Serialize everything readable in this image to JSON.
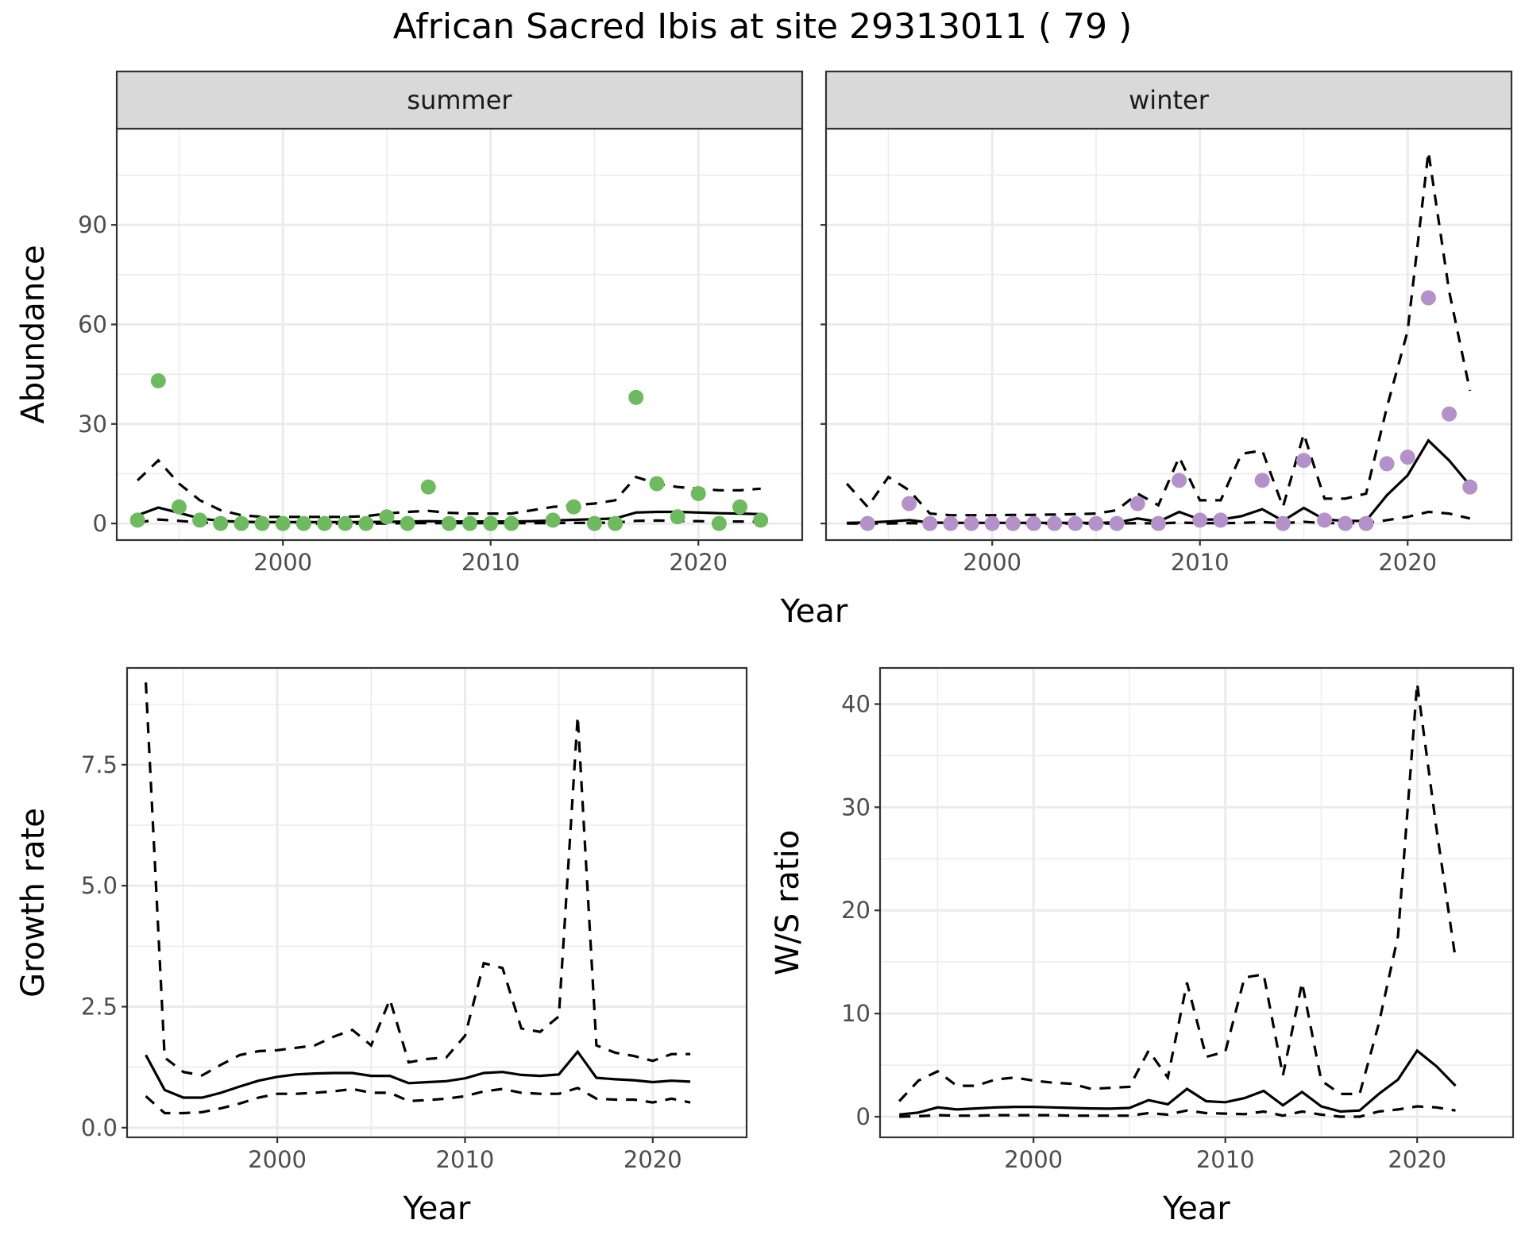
{
  "title": "African Sacred Ibis at site 29313011 ( 79 )",
  "chart_data": [
    {
      "type": "scatter+line",
      "panel": "summer",
      "strip_label": "summer",
      "xlabel": "Year",
      "ylabel": "Abundance",
      "xlim": [
        1992,
        2025
      ],
      "ylim": [
        -5,
        119
      ],
      "xticks": [
        2000,
        2010,
        2020
      ],
      "yticks": [
        0,
        30,
        60,
        90
      ],
      "point_color": "#6dbb5e",
      "grid": true,
      "observed": {
        "x": [
          1993,
          1994,
          1995,
          1996,
          1997,
          1998,
          1999,
          2000,
          2001,
          2002,
          2003,
          2004,
          2005,
          2006,
          2007,
          2008,
          2009,
          2010,
          2011,
          2013,
          2014,
          2015,
          2016,
          2017,
          2018,
          2019,
          2020,
          2021,
          2022,
          2023
        ],
        "y": [
          1,
          43,
          5,
          1,
          0,
          0,
          0,
          0,
          0,
          0,
          0,
          0,
          2,
          0,
          11,
          0,
          0,
          0,
          0,
          1,
          5,
          0,
          0,
          38,
          12,
          2,
          9,
          0,
          5,
          1
        ]
      },
      "fit": {
        "x": [
          1993,
          1994,
          1995,
          1996,
          1997,
          1998,
          1999,
          2000,
          2001,
          2002,
          2003,
          2004,
          2005,
          2006,
          2007,
          2008,
          2009,
          2010,
          2011,
          2012,
          2013,
          2014,
          2015,
          2016,
          2017,
          2018,
          2019,
          2020,
          2021,
          2022,
          2023
        ],
        "mean": [
          2.5,
          4.8,
          3.2,
          1.5,
          0.8,
          0.5,
          0.4,
          0.4,
          0.4,
          0.4,
          0.4,
          0.4,
          0.5,
          0.6,
          0.7,
          0.6,
          0.6,
          0.6,
          0.6,
          0.7,
          0.9,
          1.1,
          1.3,
          1.5,
          3.3,
          3.5,
          3.5,
          3.3,
          3.1,
          3.0,
          2.8
        ],
        "lower": [
          0.3,
          1.2,
          0.8,
          0.3,
          0.1,
          0.0,
          0.0,
          0.0,
          0.0,
          0.0,
          0.0,
          0.0,
          0.0,
          0.1,
          0.1,
          0.1,
          0.1,
          0.1,
          0.1,
          0.1,
          0.1,
          0.2,
          0.2,
          0.3,
          0.8,
          0.9,
          0.8,
          0.7,
          0.6,
          0.6,
          0.5
        ],
        "upper": [
          13,
          19,
          12,
          7,
          4,
          2.5,
          2,
          2,
          2,
          2,
          2,
          2.2,
          3,
          3.5,
          3.8,
          3.2,
          3,
          3,
          3,
          4,
          5,
          5.5,
          6,
          7,
          14,
          12,
          11,
          10.5,
          10,
          10,
          10.5
        ]
      }
    },
    {
      "type": "scatter+line",
      "panel": "winter",
      "strip_label": "winter",
      "xlabel": "Year",
      "ylabel": "Abundance",
      "xlim": [
        1992,
        2025
      ],
      "ylim": [
        -5,
        119
      ],
      "xticks": [
        2000,
        2010,
        2020
      ],
      "yticks": [
        0,
        30,
        60,
        90
      ],
      "point_color": "#b491c8",
      "grid": true,
      "observed": {
        "x": [
          1994,
          1996,
          1997,
          1998,
          1999,
          2000,
          2001,
          2002,
          2003,
          2004,
          2005,
          2006,
          2007,
          2008,
          2009,
          2010,
          2011,
          2013,
          2014,
          2015,
          2016,
          2017,
          2018,
          2019,
          2020,
          2021,
          2022,
          2023
        ],
        "y": [
          0,
          6,
          0,
          0,
          0,
          0,
          0,
          0,
          0,
          0,
          0,
          0,
          6,
          0,
          13,
          1,
          1,
          13,
          0,
          19,
          1,
          0,
          0,
          18,
          20,
          68,
          33,
          11
        ]
      },
      "fit": {
        "x": [
          1993,
          1994,
          1995,
          1996,
          1997,
          1998,
          1999,
          2000,
          2001,
          2002,
          2003,
          2004,
          2005,
          2006,
          2007,
          2008,
          2009,
          2010,
          2011,
          2012,
          2013,
          2014,
          2015,
          2016,
          2017,
          2018,
          2019,
          2020,
          2021,
          2022,
          2023
        ],
        "mean": [
          0.2,
          0.3,
          0.6,
          1.0,
          0.3,
          0.2,
          0.2,
          0.2,
          0.2,
          0.2,
          0.2,
          0.2,
          0.2,
          0.3,
          1.5,
          0.5,
          3.5,
          1.2,
          1.2,
          2.2,
          4.3,
          0.8,
          4.7,
          1.2,
          0.8,
          0.8,
          8.5,
          14.5,
          25,
          19,
          11.5
        ],
        "lower": [
          0.0,
          0.0,
          0.0,
          0.1,
          0.0,
          0.0,
          0.0,
          0.0,
          0.0,
          0.0,
          0.0,
          0.0,
          0.0,
          0.0,
          0.1,
          0.0,
          0.3,
          0.1,
          0.1,
          0.2,
          0.4,
          0.1,
          0.5,
          0.1,
          0.1,
          0.1,
          1.0,
          2.0,
          3.5,
          3.0,
          1.5
        ],
        "upper": [
          12,
          5,
          14,
          10,
          3,
          2.5,
          2.5,
          2.5,
          2.6,
          2.6,
          2.7,
          2.8,
          3,
          4,
          9,
          5.5,
          20,
          7,
          7,
          21,
          22,
          5,
          27,
          7.5,
          7.5,
          9,
          35,
          58,
          112,
          70,
          40
        ]
      }
    },
    {
      "type": "line",
      "panel": "growth-rate",
      "xlabel": "Year",
      "ylabel": "Growth rate",
      "xlim": [
        1992,
        2025
      ],
      "ylim": [
        -0.2,
        9.5
      ],
      "xticks": [
        2000,
        2010,
        2020
      ],
      "yticks": [
        0.0,
        2.5,
        5.0,
        7.5
      ],
      "ytick_labels": [
        "0.0",
        "2.5",
        "5.0",
        "7.5"
      ],
      "grid": true,
      "x": [
        1993,
        1994,
        1995,
        1996,
        1997,
        1998,
        1999,
        2000,
        2001,
        2002,
        2003,
        2004,
        2005,
        2006,
        2007,
        2008,
        2009,
        2010,
        2011,
        2012,
        2013,
        2014,
        2015,
        2016,
        2017,
        2018,
        2019,
        2020,
        2021,
        2022
      ],
      "mean": [
        1.5,
        0.78,
        0.62,
        0.62,
        0.72,
        0.85,
        0.97,
        1.05,
        1.1,
        1.12,
        1.13,
        1.13,
        1.07,
        1.07,
        0.92,
        0.94,
        0.96,
        1.02,
        1.13,
        1.15,
        1.09,
        1.07,
        1.1,
        1.57,
        1.03,
        1.0,
        0.98,
        0.94,
        0.97,
        0.95
      ],
      "lower": [
        0.65,
        0.3,
        0.3,
        0.32,
        0.4,
        0.5,
        0.62,
        0.7,
        0.7,
        0.72,
        0.75,
        0.8,
        0.72,
        0.72,
        0.55,
        0.57,
        0.6,
        0.65,
        0.75,
        0.8,
        0.72,
        0.7,
        0.7,
        0.82,
        0.6,
        0.58,
        0.58,
        0.52,
        0.6,
        0.52
      ],
      "upper": [
        9.2,
        1.45,
        1.15,
        1.08,
        1.3,
        1.5,
        1.58,
        1.6,
        1.65,
        1.7,
        1.88,
        2.02,
        1.7,
        2.65,
        1.35,
        1.42,
        1.45,
        1.9,
        3.4,
        3.3,
        2.05,
        1.98,
        2.3,
        8.5,
        1.7,
        1.55,
        1.48,
        1.38,
        1.52,
        1.52
      ]
    },
    {
      "type": "line",
      "panel": "ws-ratio",
      "xlabel": "Year",
      "ylabel": "W/S ratio",
      "xlim": [
        1992,
        2025
      ],
      "ylim": [
        -2,
        43.5
      ],
      "xticks": [
        2000,
        2010,
        2020
      ],
      "yticks": [
        0,
        10,
        20,
        30,
        40
      ],
      "grid": true,
      "x": [
        1993,
        1994,
        1995,
        1996,
        1997,
        1998,
        1999,
        2000,
        2001,
        2002,
        2003,
        2004,
        2005,
        2006,
        2007,
        2008,
        2009,
        2010,
        2011,
        2012,
        2013,
        2014,
        2015,
        2016,
        2017,
        2018,
        2019,
        2020,
        2021,
        2022
      ],
      "mean": [
        0.2,
        0.4,
        0.9,
        0.7,
        0.8,
        0.9,
        0.95,
        0.95,
        0.9,
        0.85,
        0.8,
        0.78,
        0.85,
        1.6,
        1.2,
        2.7,
        1.5,
        1.4,
        1.8,
        2.5,
        1.1,
        2.4,
        1.0,
        0.5,
        0.6,
        2.2,
        3.6,
        6.4,
        4.9,
        3.0
      ],
      "lower": [
        0.0,
        0.05,
        0.15,
        0.1,
        0.1,
        0.15,
        0.15,
        0.15,
        0.15,
        0.1,
        0.1,
        0.1,
        0.1,
        0.35,
        0.2,
        0.6,
        0.35,
        0.3,
        0.25,
        0.5,
        0.1,
        0.5,
        0.2,
        0.0,
        0.0,
        0.5,
        0.7,
        1.0,
        0.9,
        0.6
      ],
      "upper": [
        1.5,
        3.5,
        4.4,
        3.0,
        3.0,
        3.6,
        3.8,
        3.5,
        3.3,
        3.2,
        2.7,
        2.8,
        2.9,
        6.4,
        3.8,
        13.0,
        5.8,
        6.3,
        13.5,
        13.8,
        4.0,
        13.0,
        3.5,
        2.2,
        2.2,
        9.0,
        17.5,
        42,
        28,
        15.3
      ]
    }
  ]
}
